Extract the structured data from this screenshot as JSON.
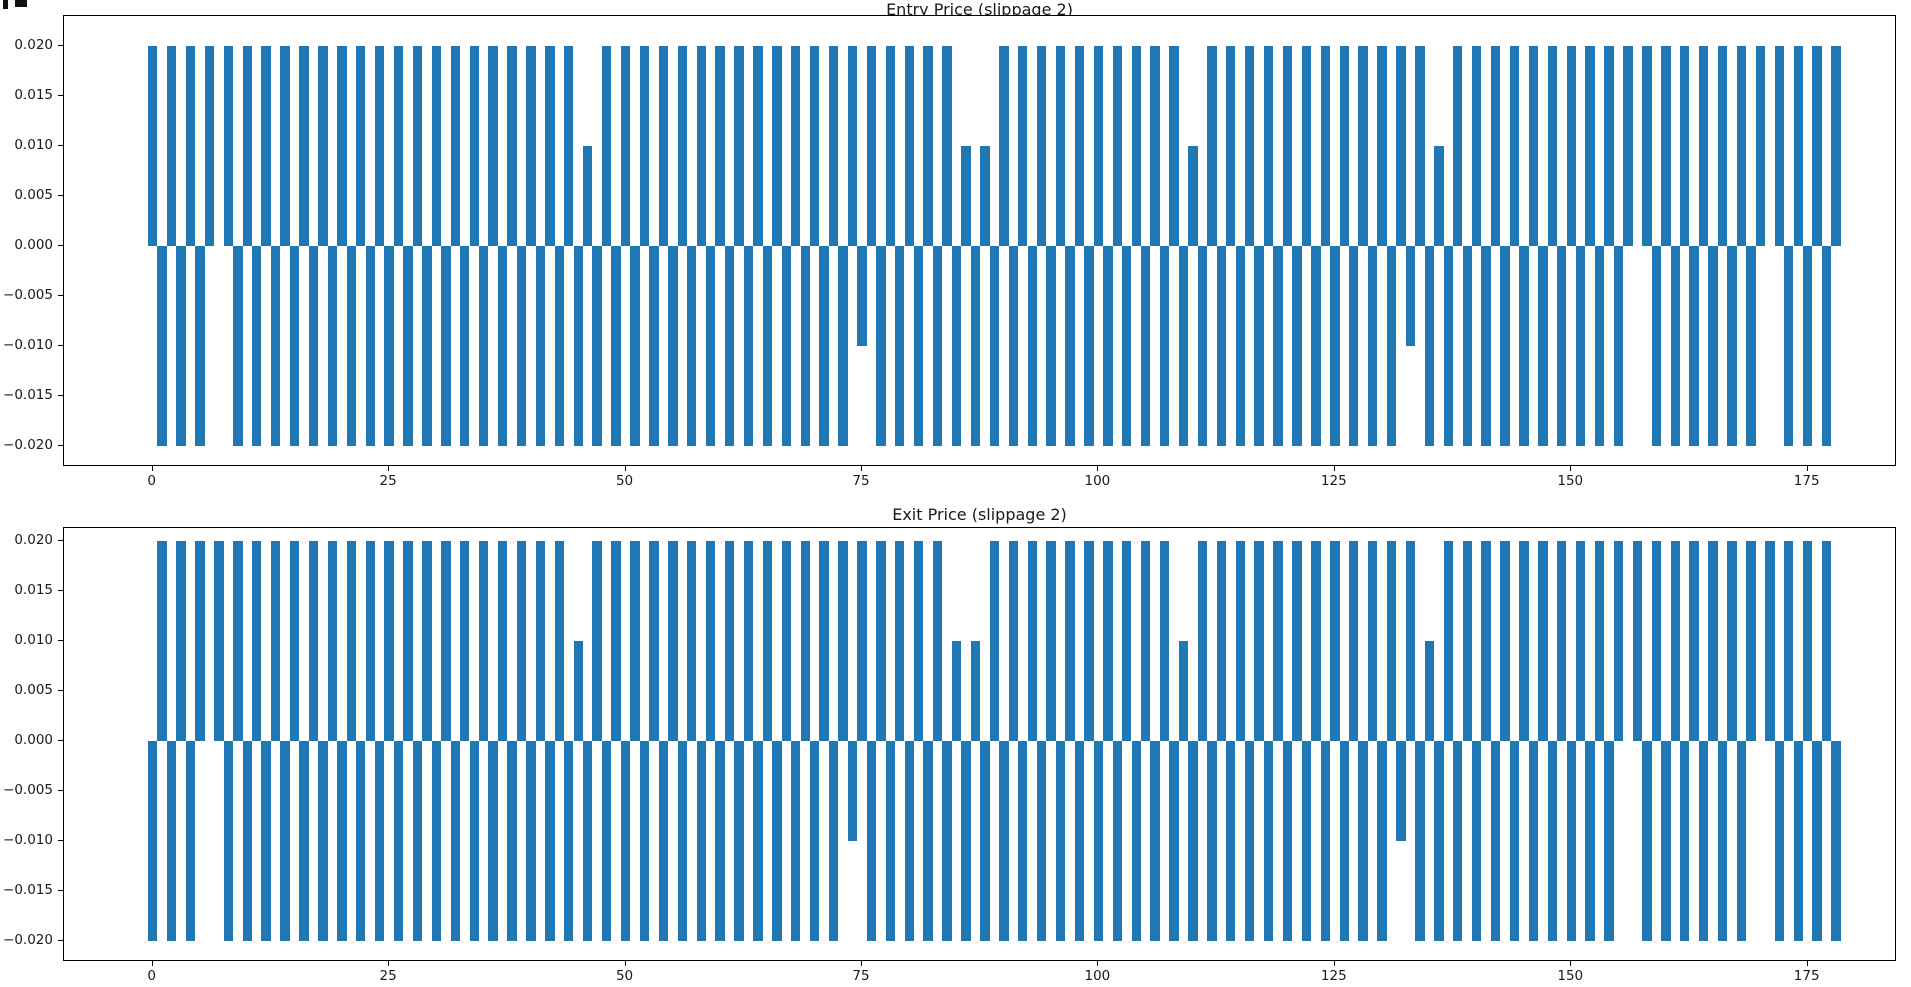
{
  "page": {
    "background": "#ffffff",
    "accent_color": "#1f77b4"
  },
  "chart_data": [
    {
      "type": "bar",
      "title": "Entry Price (slippage 2)",
      "bar_color": "#1f77b4",
      "xlabel": "",
      "ylabel": "",
      "x_start": 0,
      "x_step": 1,
      "xlim": [
        -9.4,
        184.5
      ],
      "ylim": [
        -0.022,
        0.022
      ],
      "grid": false,
      "legend": "none",
      "xticks": [
        {
          "label": "0",
          "value": 0
        },
        {
          "label": "25",
          "value": 25
        },
        {
          "label": "50",
          "value": 50
        },
        {
          "label": "75",
          "value": 75
        },
        {
          "label": "100",
          "value": 100
        },
        {
          "label": "125",
          "value": 125
        },
        {
          "label": "150",
          "value": 150
        },
        {
          "label": "175",
          "value": 175
        }
      ],
      "yticks": [
        {
          "label": "0.020",
          "value": 0.02
        },
        {
          "label": "0.015",
          "value": 0.015
        },
        {
          "label": "0.010",
          "value": 0.01
        },
        {
          "label": "0.005",
          "value": 0.005
        },
        {
          "label": "0.000",
          "value": 0.0
        },
        {
          "label": "−0.005",
          "value": -0.005
        },
        {
          "label": "−0.010",
          "value": -0.01
        },
        {
          "label": "−0.015",
          "value": -0.015
        },
        {
          "label": "−0.020",
          "value": -0.02
        }
      ],
      "values": [
        0.02,
        -0.02,
        0.02,
        -0.02,
        0.02,
        -0.02,
        0.02,
        0,
        0.02,
        -0.02,
        0.02,
        -0.02,
        0.02,
        -0.02,
        0.02,
        -0.02,
        0.02,
        -0.02,
        0.02,
        -0.02,
        0.02,
        -0.02,
        0.02,
        -0.02,
        0.02,
        -0.02,
        0.02,
        -0.02,
        0.02,
        -0.02,
        0.02,
        -0.02,
        0.02,
        -0.02,
        0.02,
        -0.02,
        0.02,
        -0.02,
        0.02,
        -0.02,
        0.02,
        -0.02,
        0.02,
        -0.02,
        0.02,
        -0.02,
        0.01,
        -0.02,
        0.02,
        -0.02,
        0.02,
        -0.02,
        0.02,
        -0.02,
        0.02,
        -0.02,
        0.02,
        -0.02,
        0.02,
        -0.02,
        0.02,
        -0.02,
        0.02,
        -0.02,
        0.02,
        -0.02,
        0.02,
        -0.02,
        0.02,
        -0.02,
        0.02,
        -0.02,
        0.02,
        -0.02,
        0.02,
        -0.01,
        0.02,
        -0.02,
        0.02,
        -0.02,
        0.02,
        -0.02,
        0.02,
        -0.02,
        0.02,
        -0.02,
        0.01,
        -0.02,
        0.01,
        -0.02,
        0.02,
        -0.02,
        0.02,
        -0.02,
        0.02,
        -0.02,
        0.02,
        -0.02,
        0.02,
        -0.02,
        0.02,
        -0.02,
        0.02,
        -0.02,
        0.02,
        -0.02,
        0.02,
        -0.02,
        0.02,
        -0.02,
        0.01,
        -0.02,
        0.02,
        -0.02,
        0.02,
        -0.02,
        0.02,
        -0.02,
        0.02,
        -0.02,
        0.02,
        -0.02,
        0.02,
        -0.02,
        0.02,
        -0.02,
        0.02,
        -0.02,
        0.02,
        -0.02,
        0.02,
        -0.02,
        0.02,
        -0.01,
        0.02,
        -0.02,
        0.01,
        -0.02,
        0.02,
        -0.02,
        0.02,
        -0.02,
        0.02,
        -0.02,
        0.02,
        -0.02,
        0.02,
        -0.02,
        0.02,
        -0.02,
        0.02,
        -0.02,
        0.02,
        -0.02,
        0.02,
        -0.02,
        0.02,
        0,
        0.02,
        -0.02,
        0.02,
        -0.02,
        0.02,
        -0.02,
        0.02,
        -0.02,
        0.02,
        -0.02,
        0.02,
        -0.02,
        0.02,
        0,
        0.02,
        -0.02,
        0.02,
        -0.02,
        0.02,
        -0.02,
        0.02
      ]
    },
    {
      "type": "bar",
      "title": "Exit Price (slippage 2)",
      "bar_color": "#1f77b4",
      "xlabel": "",
      "ylabel": "",
      "x_start": 0,
      "x_step": 1,
      "xlim": [
        -9.4,
        184.5
      ],
      "ylim": [
        -0.022,
        0.022
      ],
      "grid": false,
      "legend": "none",
      "xticks": [
        {
          "label": "0",
          "value": 0
        },
        {
          "label": "25",
          "value": 25
        },
        {
          "label": "50",
          "value": 50
        },
        {
          "label": "75",
          "value": 75
        },
        {
          "label": "100",
          "value": 100
        },
        {
          "label": "125",
          "value": 125
        },
        {
          "label": "150",
          "value": 150
        },
        {
          "label": "175",
          "value": 175
        }
      ],
      "yticks": [
        {
          "label": "0.020",
          "value": 0.02
        },
        {
          "label": "0.015",
          "value": 0.015
        },
        {
          "label": "0.010",
          "value": 0.01
        },
        {
          "label": "0.005",
          "value": 0.005
        },
        {
          "label": "0.000",
          "value": 0.0
        },
        {
          "label": "−0.005",
          "value": -0.005
        },
        {
          "label": "−0.010",
          "value": -0.01
        },
        {
          "label": "−0.015",
          "value": -0.015
        },
        {
          "label": "−0.020",
          "value": -0.02
        }
      ],
      "values": [
        -0.02,
        0.02,
        -0.02,
        0.02,
        -0.02,
        0.02,
        0,
        0.02,
        -0.02,
        0.02,
        -0.02,
        0.02,
        -0.02,
        0.02,
        -0.02,
        0.02,
        -0.02,
        0.02,
        -0.02,
        0.02,
        -0.02,
        0.02,
        -0.02,
        0.02,
        -0.02,
        0.02,
        -0.02,
        0.02,
        -0.02,
        0.02,
        -0.02,
        0.02,
        -0.02,
        0.02,
        -0.02,
        0.02,
        -0.02,
        0.02,
        -0.02,
        0.02,
        -0.02,
        0.02,
        -0.02,
        0.02,
        -0.02,
        0.01,
        -0.02,
        0.02,
        -0.02,
        0.02,
        -0.02,
        0.02,
        -0.02,
        0.02,
        -0.02,
        0.02,
        -0.02,
        0.02,
        -0.02,
        0.02,
        -0.02,
        0.02,
        -0.02,
        0.02,
        -0.02,
        0.02,
        -0.02,
        0.02,
        -0.02,
        0.02,
        -0.02,
        0.02,
        -0.02,
        0.02,
        -0.01,
        0.02,
        -0.02,
        0.02,
        -0.02,
        0.02,
        -0.02,
        0.02,
        -0.02,
        0.02,
        -0.02,
        0.01,
        -0.02,
        0.01,
        -0.02,
        0.02,
        -0.02,
        0.02,
        -0.02,
        0.02,
        -0.02,
        0.02,
        -0.02,
        0.02,
        -0.02,
        0.02,
        -0.02,
        0.02,
        -0.02,
        0.02,
        -0.02,
        0.02,
        -0.02,
        0.02,
        -0.02,
        0.01,
        -0.02,
        0.02,
        -0.02,
        0.02,
        -0.02,
        0.02,
        -0.02,
        0.02,
        -0.02,
        0.02,
        -0.02,
        0.02,
        -0.02,
        0.02,
        -0.02,
        0.02,
        -0.02,
        0.02,
        -0.02,
        0.02,
        -0.02,
        0.02,
        -0.01,
        0.02,
        -0.02,
        0.01,
        -0.02,
        0.02,
        -0.02,
        0.02,
        -0.02,
        0.02,
        -0.02,
        0.02,
        -0.02,
        0.02,
        -0.02,
        0.02,
        -0.02,
        0.02,
        -0.02,
        0.02,
        -0.02,
        0.02,
        -0.02,
        0.02,
        0,
        0.02,
        -0.02,
        0.02,
        -0.02,
        0.02,
        -0.02,
        0.02,
        -0.02,
        0.02,
        -0.02,
        0.02,
        -0.02,
        0.02,
        0,
        0.02,
        -0.02,
        0.02,
        -0.02,
        0.02,
        -0.02,
        0.02,
        -0.02
      ]
    }
  ]
}
